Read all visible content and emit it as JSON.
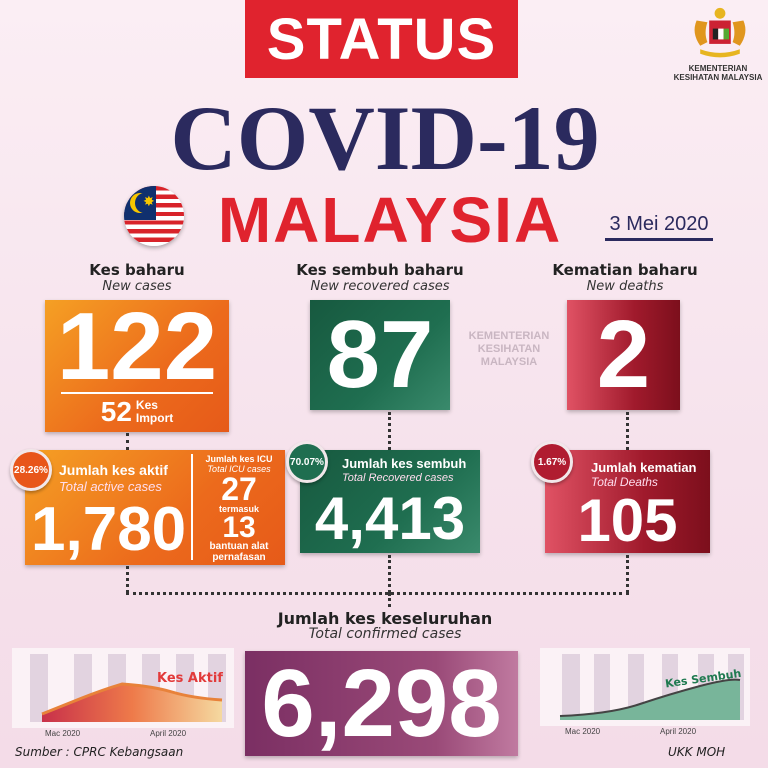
{
  "header": {
    "status": "STATUS",
    "title": "COVID-19",
    "country": "MALAYSIA",
    "date": "3 Mei 2020",
    "ministry": "KEMENTERIAN KESIHATAN MALAYSIA",
    "watermark": "KEMENTERIAN KESIHATAN MALAYSIA"
  },
  "new_cases": {
    "label": "Kes baharu",
    "label_en": "New cases",
    "value": "122",
    "import_value": "52",
    "import_label_1": "Kes",
    "import_label_2": "Import"
  },
  "new_recovered": {
    "label": "Kes sembuh baharu",
    "label_en": "New recovered cases",
    "value": "87"
  },
  "new_deaths": {
    "label": "Kematian baharu",
    "label_en": "New deaths",
    "value": "2"
  },
  "active": {
    "percent": "28.26%",
    "label": "Jumlah kes aktif",
    "label_en": "Total active cases",
    "value": "1,780",
    "icu_label": "Jumlah kes ICU",
    "icu_label_en": "Total ICU cases",
    "icu_value": "27",
    "including": "termasuk",
    "ventilator_value": "13",
    "ventilator_label_1": "bantuan alat",
    "ventilator_label_2": "pernafasan"
  },
  "recovered": {
    "percent": "70.07%",
    "label": "Jumlah kes sembuh",
    "label_en": "Total Recovered cases",
    "value": "4,413"
  },
  "deaths": {
    "percent": "1.67%",
    "label": "Jumlah kematian",
    "label_en": "Total Deaths",
    "value": "105"
  },
  "total": {
    "label": "Jumlah kes keseluruhan",
    "label_en": "Total confirmed cases",
    "value": "6,298"
  },
  "charts": {
    "active_label": "Kes Aktif",
    "recovered_label": "Kes Sembuh",
    "month1": "Mac 2020",
    "month2": "April 2020"
  },
  "footer": {
    "source": "Sumber : CPRC Kebangsaan",
    "credit": "UKK MOH"
  },
  "colors": {
    "red": "#e0232e",
    "navy": "#2b2a5e",
    "orange": "#ec6a1c",
    "green": "#1f6e50",
    "maroon": "#a01a2c",
    "purple": "#6a2f5e"
  }
}
